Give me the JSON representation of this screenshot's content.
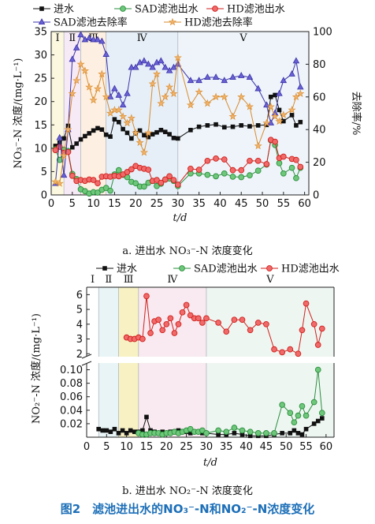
{
  "figure_caption": "图2　滤池进出水的NO₃⁻-N和NO₂⁻-N浓度变化",
  "chart_data": [
    {
      "type": "line",
      "caption": "a. 进出水 NO₃⁻-N 浓度变化",
      "xlabel": "t/d",
      "ylabel": "NO₃⁻-N 浓度/(mg·L⁻¹)",
      "ylabel_right": "去除率/%",
      "xlim": [
        0,
        61
      ],
      "ylim": [
        0,
        35
      ],
      "ylim_right": [
        0,
        100
      ],
      "x_ticks": [
        0,
        5,
        10,
        15,
        20,
        25,
        30,
        35,
        40,
        45,
        50,
        55,
        60
      ],
      "y_ticks": [
        0,
        5,
        10,
        15,
        20,
        25,
        30,
        35
      ],
      "y_ticks_right": [
        0,
        20,
        40,
        60,
        80,
        100
      ],
      "legend_position": "top",
      "phase_labels": [
        "Ⅰ",
        "Ⅱ",
        "Ⅲ",
        "Ⅳ",
        "Ⅴ"
      ],
      "phases": [
        [
          0,
          3
        ],
        [
          3,
          7
        ],
        [
          7,
          13
        ],
        [
          13,
          30
        ],
        [
          30,
          61
        ]
      ],
      "phase_colors": [
        "#fbf8df",
        "#f6eaf6",
        "#fdf0e2",
        "#e6eff8",
        "#eef4fa"
      ],
      "series": [
        {
          "name": "进水",
          "axis": "left",
          "marker": "square",
          "color": "#111111",
          "x": [
            1,
            2,
            3,
            4,
            5,
            6,
            7,
            8,
            9,
            10,
            11,
            12,
            13,
            14,
            15,
            16,
            17,
            18,
            19,
            20,
            21,
            22,
            23,
            24,
            25,
            26,
            27,
            28,
            29,
            30,
            33,
            35,
            37,
            39,
            41,
            43,
            45,
            47,
            49,
            51,
            52,
            53,
            54,
            55,
            57,
            58,
            59
          ],
          "y": [
            10.5,
            11.2,
            12.1,
            14.8,
            10.2,
            11.0,
            11.9,
            12.6,
            13.2,
            13.8,
            14.3,
            14.0,
            12.9,
            12.5,
            16.2,
            15.6,
            14.1,
            13.3,
            12.1,
            13.2,
            13.8,
            12.8,
            12.4,
            13.0,
            13.4,
            13.9,
            13.5,
            13.0,
            12.2,
            12.1,
            13.9,
            14.6,
            14.9,
            15.1,
            14.5,
            14.6,
            14.9,
            14.7,
            14.9,
            15.0,
            21.0,
            21.4,
            18.2,
            15.8,
            17.1,
            14.9,
            15.6
          ]
        },
        {
          "name": "SAD滤池出水",
          "axis": "left",
          "marker": "circle",
          "color": "#2a8f3c",
          "fill": "#6ec77b",
          "x": [
            1,
            2,
            3,
            4,
            5,
            6,
            7,
            8,
            9,
            10,
            11,
            12,
            13,
            14,
            15,
            16,
            17,
            18,
            19,
            20,
            21,
            22,
            23,
            24,
            25,
            26,
            27,
            28,
            29,
            30,
            33,
            35,
            37,
            39,
            41,
            43,
            45,
            47,
            49,
            51,
            52,
            53,
            54,
            55,
            57,
            58,
            59
          ],
          "y": [
            9.8,
            7.5,
            9.7,
            9.4,
            4.5,
            3.4,
            1.2,
            0.8,
            0.3,
            0.6,
            0.5,
            1.1,
            1.5,
            0.9,
            4.4,
            5.3,
            4.3,
            3.8,
            2.8,
            2.5,
            1.8,
            1.8,
            2.6,
            3.0,
            1.9,
            2.4,
            3.3,
            3.5,
            3.0,
            1.9,
            4.6,
            4.6,
            4.3,
            4.0,
            4.6,
            3.9,
            3.8,
            4.2,
            5.2,
            6.5,
            11.7,
            10.7,
            6.8,
            4.6,
            5.8,
            3.6,
            5.8
          ]
        },
        {
          "name": "HD滤池出水",
          "axis": "left",
          "marker": "circle",
          "color": "#d0201c",
          "fill": "#f06a6a",
          "x": [
            1,
            2,
            3,
            4,
            5,
            6,
            7,
            8,
            9,
            10,
            11,
            12,
            13,
            14,
            15,
            16,
            17,
            18,
            19,
            20,
            21,
            22,
            23,
            24,
            25,
            26,
            27,
            28,
            29,
            30,
            33,
            35,
            37,
            39,
            41,
            43,
            45,
            47,
            49,
            51,
            52,
            53,
            54,
            55,
            57,
            58,
            59
          ],
          "y": [
            9.6,
            10.3,
            9.0,
            9.2,
            4.1,
            3.0,
            3.2,
            3.0,
            3.3,
            3.2,
            2.5,
            3.9,
            4.0,
            3.9,
            4.1,
            4.0,
            4.4,
            4.9,
            5.5,
            6.2,
            5.8,
            5.6,
            5.4,
            3.0,
            3.2,
            2.6,
            3.3,
            4.0,
            3.2,
            2.2,
            5.6,
            5.4,
            7.3,
            7.8,
            7.6,
            5.3,
            5.3,
            7.3,
            7.3,
            6.6,
            11.8,
            11.4,
            7.9,
            8.2,
            7.7,
            7.5,
            6.0
          ]
        },
        {
          "name": "SAD滤池去除率",
          "axis": "right",
          "marker": "triangle",
          "color": "#3a32a8",
          "fill": "#6a62d4",
          "x": [
            1,
            2,
            3,
            4,
            5,
            6,
            7,
            8,
            9,
            10,
            11,
            12,
            13,
            14,
            15,
            16,
            17,
            18,
            19,
            20,
            21,
            22,
            23,
            24,
            25,
            26,
            27,
            28,
            29,
            30,
            33,
            35,
            37,
            39,
            41,
            43,
            45,
            47,
            49,
            51,
            52,
            53,
            54,
            55,
            57,
            58,
            59
          ],
          "y": [
            7,
            35,
            12,
            40,
            83,
            90,
            98,
            95,
            96,
            95,
            95,
            94,
            86,
            60,
            65,
            61,
            55,
            62,
            78,
            78,
            81,
            82,
            80,
            78,
            81,
            82,
            78,
            76,
            78,
            80,
            70,
            70,
            72,
            72,
            70,
            72,
            73,
            72,
            65,
            55,
            44,
            50,
            62,
            70,
            74,
            82,
            66
          ]
        },
        {
          "name": "HD滤池去除率",
          "axis": "right",
          "marker": "star",
          "color": "#d98b2e",
          "fill": "#f0b26a",
          "x": [
            1,
            2,
            3,
            4,
            5,
            6,
            7,
            8,
            9,
            10,
            11,
            12,
            13,
            14,
            15,
            16,
            17,
            18,
            19,
            20,
            21,
            22,
            23,
            24,
            25,
            26,
            27,
            28,
            29,
            30,
            33,
            35,
            37,
            39,
            41,
            43,
            45,
            47,
            49,
            51,
            52,
            53,
            54,
            55,
            57,
            58,
            59
          ],
          "y": [
            8,
            7,
            24,
            40,
            62,
            70,
            80,
            76,
            66,
            58,
            65,
            74,
            60,
            50,
            52,
            52,
            48,
            44,
            47,
            38,
            32,
            26,
            38,
            68,
            74,
            56,
            60,
            66,
            62,
            84,
            55,
            63,
            56,
            60,
            60,
            48,
            60,
            54,
            30,
            44,
            54,
            48,
            45,
            49,
            52,
            60,
            62
          ]
        }
      ]
    },
    {
      "type": "line",
      "caption": "b. 进出水 NO₂⁻-N 浓度变化",
      "xlabel": "t/d",
      "ylabel": "NO₂⁻-N 浓度/(mg·L⁻¹)",
      "axis_break": true,
      "xlim": [
        0,
        62
      ],
      "ylim_lower": [
        0,
        0.11
      ],
      "ylim_upper": [
        1.8,
        6.5
      ],
      "x_ticks": [
        0,
        5,
        10,
        15,
        20,
        25,
        30,
        35,
        40,
        45,
        50,
        55,
        60
      ],
      "y_ticks_lower": [
        0.02,
        0.04,
        0.06,
        0.08,
        0.1
      ],
      "y_ticks_upper": [
        2,
        3,
        4,
        5,
        6
      ],
      "legend_position": "top",
      "phase_labels": [
        "Ⅰ",
        "Ⅱ",
        "Ⅲ",
        "Ⅳ",
        "Ⅴ"
      ],
      "phases": [
        [
          0,
          3
        ],
        [
          3,
          8
        ],
        [
          8,
          13
        ],
        [
          13,
          30
        ],
        [
          30,
          62
        ]
      ],
      "phase_colors": [
        "#ffffff",
        "#e8f4f6",
        "#f7f1c4",
        "#f8eaf0",
        "#eef6f2"
      ],
      "series": [
        {
          "name": "进水",
          "marker": "square",
          "color": "#111111",
          "x": [
            3,
            4,
            5,
            6,
            7,
            8,
            9,
            10,
            11,
            12,
            13,
            14,
            15,
            16,
            17,
            18,
            19,
            20,
            21,
            22,
            23,
            24,
            25,
            26,
            27,
            28,
            29,
            30,
            33,
            35,
            37,
            39,
            41,
            43,
            45,
            47,
            49,
            51,
            52,
            53,
            54,
            55,
            57,
            58,
            59
          ],
          "y": [
            0.012,
            0.01,
            0.01,
            0.008,
            0.012,
            0.006,
            0.01,
            0.006,
            0.01,
            0.008,
            0.008,
            0.01,
            0.03,
            0.01,
            0.008,
            0.006,
            0.008,
            0.006,
            0.008,
            0.008,
            0.01,
            0.008,
            0.008,
            0.006,
            0.008,
            0.008,
            0.006,
            0.006,
            0.004,
            0.004,
            0.006,
            0.004,
            0.002,
            0.002,
            0.002,
            0.004,
            0.006,
            0.006,
            0.01,
            0.006,
            0.004,
            0.012,
            0.02,
            0.024,
            0.028
          ]
        },
        {
          "name": "SAD滤池出水",
          "marker": "circle",
          "color": "#2a8f3c",
          "fill": "#6ec77b",
          "x": [
            13,
            14,
            15,
            16,
            17,
            18,
            19,
            20,
            21,
            22,
            23,
            24,
            25,
            26,
            27,
            28,
            29,
            30,
            33,
            35,
            37,
            39,
            41,
            43,
            45,
            47,
            49,
            51,
            52,
            53,
            54,
            55,
            57,
            58,
            59
          ],
          "y": [
            0.006,
            0.004,
            0.004,
            0.006,
            0.006,
            0.006,
            0.004,
            0.006,
            0.006,
            0.008,
            0.006,
            0.008,
            0.01,
            0.012,
            0.008,
            0.008,
            0.01,
            0.006,
            0.01,
            0.008,
            0.014,
            0.01,
            0.008,
            0.006,
            0.006,
            0.006,
            0.048,
            0.036,
            0.022,
            0.032,
            0.046,
            0.032,
            0.052,
            0.1,
            0.036
          ]
        },
        {
          "name": "HD滤池出水",
          "marker": "circle",
          "color": "#d0201c",
          "fill": "#f06a6a",
          "x": [
            10,
            11,
            12,
            13,
            14,
            15,
            16,
            17,
            18,
            19,
            20,
            21,
            22,
            23,
            24,
            25,
            26,
            27,
            28,
            29,
            30,
            33,
            35,
            37,
            39,
            41,
            43,
            45,
            47,
            49,
            51,
            53,
            54,
            55,
            57,
            58,
            59
          ],
          "y": [
            3.1,
            3.0,
            3.0,
            3.1,
            3.0,
            5.9,
            3.4,
            4.2,
            4.3,
            3.6,
            4.0,
            4.4,
            3.4,
            4.0,
            4.8,
            5.3,
            4.6,
            4.4,
            4.4,
            4.1,
            4.4,
            4.1,
            3.5,
            4.3,
            4.3,
            3.6,
            4.1,
            4.0,
            2.3,
            2.1,
            2.3,
            2.0,
            3.6,
            5.4,
            4.0,
            2.6,
            3.7
          ]
        }
      ]
    }
  ]
}
